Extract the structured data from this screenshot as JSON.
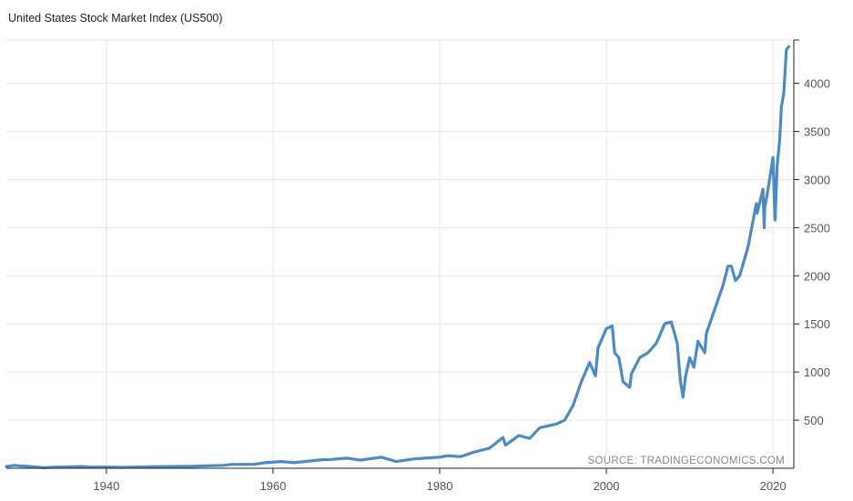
{
  "chart_data": {
    "type": "line",
    "title": "United States Stock Market Index (US500)",
    "source": "SOURCE: TRADINGECONOMICS.COM",
    "xlabel": "",
    "ylabel": "",
    "xlim": [
      1928,
      2022.5
    ],
    "ylim": [
      0,
      4450
    ],
    "x_ticks": [
      1940,
      1960,
      1980,
      2000,
      2020
    ],
    "x_tick_labels": [
      "1940",
      "1960",
      "1980",
      "2000",
      "2020"
    ],
    "y_ticks": [
      500,
      1000,
      1500,
      2000,
      2500,
      3000,
      3500,
      4000
    ],
    "y_tick_labels": [
      "500",
      "1000",
      "1500",
      "2000",
      "2500",
      "3000",
      "3500",
      "4000"
    ],
    "y_axis_position": "right",
    "grid": true,
    "line_color": "#4a8ac9",
    "series": [
      {
        "x": [
          1928,
          1929,
          1929.7,
          1930.5,
          1932.5,
          1933.5,
          1936,
          1937,
          1938,
          1940,
          1942,
          1945,
          1950,
          1954,
          1955,
          1957.8,
          1959,
          1961,
          1962.5,
          1966,
          1967,
          1968.9,
          1970.5,
          1973,
          1974.8,
          1977,
          1980,
          1981,
          1982.5,
          1984,
          1986,
          1987.6,
          1987.9,
          1989.5,
          1990.8,
          1992,
          1994,
          1995,
          1996,
          1997,
          1998,
          1998.7,
          1999,
          1999.5,
          2000,
          2000.7,
          2001,
          2001.5,
          2002,
          2002.8,
          2003,
          2004,
          2005,
          2006,
          2007,
          2007.8,
          2008.5,
          2008.9,
          2009.2,
          2009.5,
          2010,
          2010.5,
          2011,
          2011.8,
          2012,
          2013,
          2014,
          2014.6,
          2015,
          2015.5,
          2016,
          2016.5,
          2017,
          2018,
          2018.1,
          2018.8,
          2018.95,
          2019,
          2019.5,
          2020,
          2020.2,
          2020.25,
          2020.5,
          2020.8,
          2021,
          2021.3,
          2021.6,
          2021.9
        ],
        "y": [
          18,
          30,
          24,
          20,
          7,
          10,
          15,
          18,
          12,
          12,
          9,
          15,
          20,
          30,
          40,
          42,
          58,
          70,
          58,
          90,
          92,
          105,
          85,
          115,
          70,
          98,
          115,
          130,
          120,
          165,
          210,
          320,
          240,
          340,
          310,
          420,
          460,
          500,
          650,
          900,
          1100,
          960,
          1250,
          1350,
          1450,
          1480,
          1200,
          1150,
          900,
          840,
          980,
          1150,
          1200,
          1300,
          1500,
          1520,
          1300,
          900,
          740,
          950,
          1150,
          1050,
          1320,
          1200,
          1400,
          1650,
          1900,
          2100,
          2100,
          1950,
          2000,
          2150,
          2300,
          2750,
          2650,
          2900,
          2500,
          2700,
          2950,
          3230,
          2700,
          2580,
          3150,
          3400,
          3750,
          3900,
          4350,
          4380
        ]
      }
    ]
  }
}
